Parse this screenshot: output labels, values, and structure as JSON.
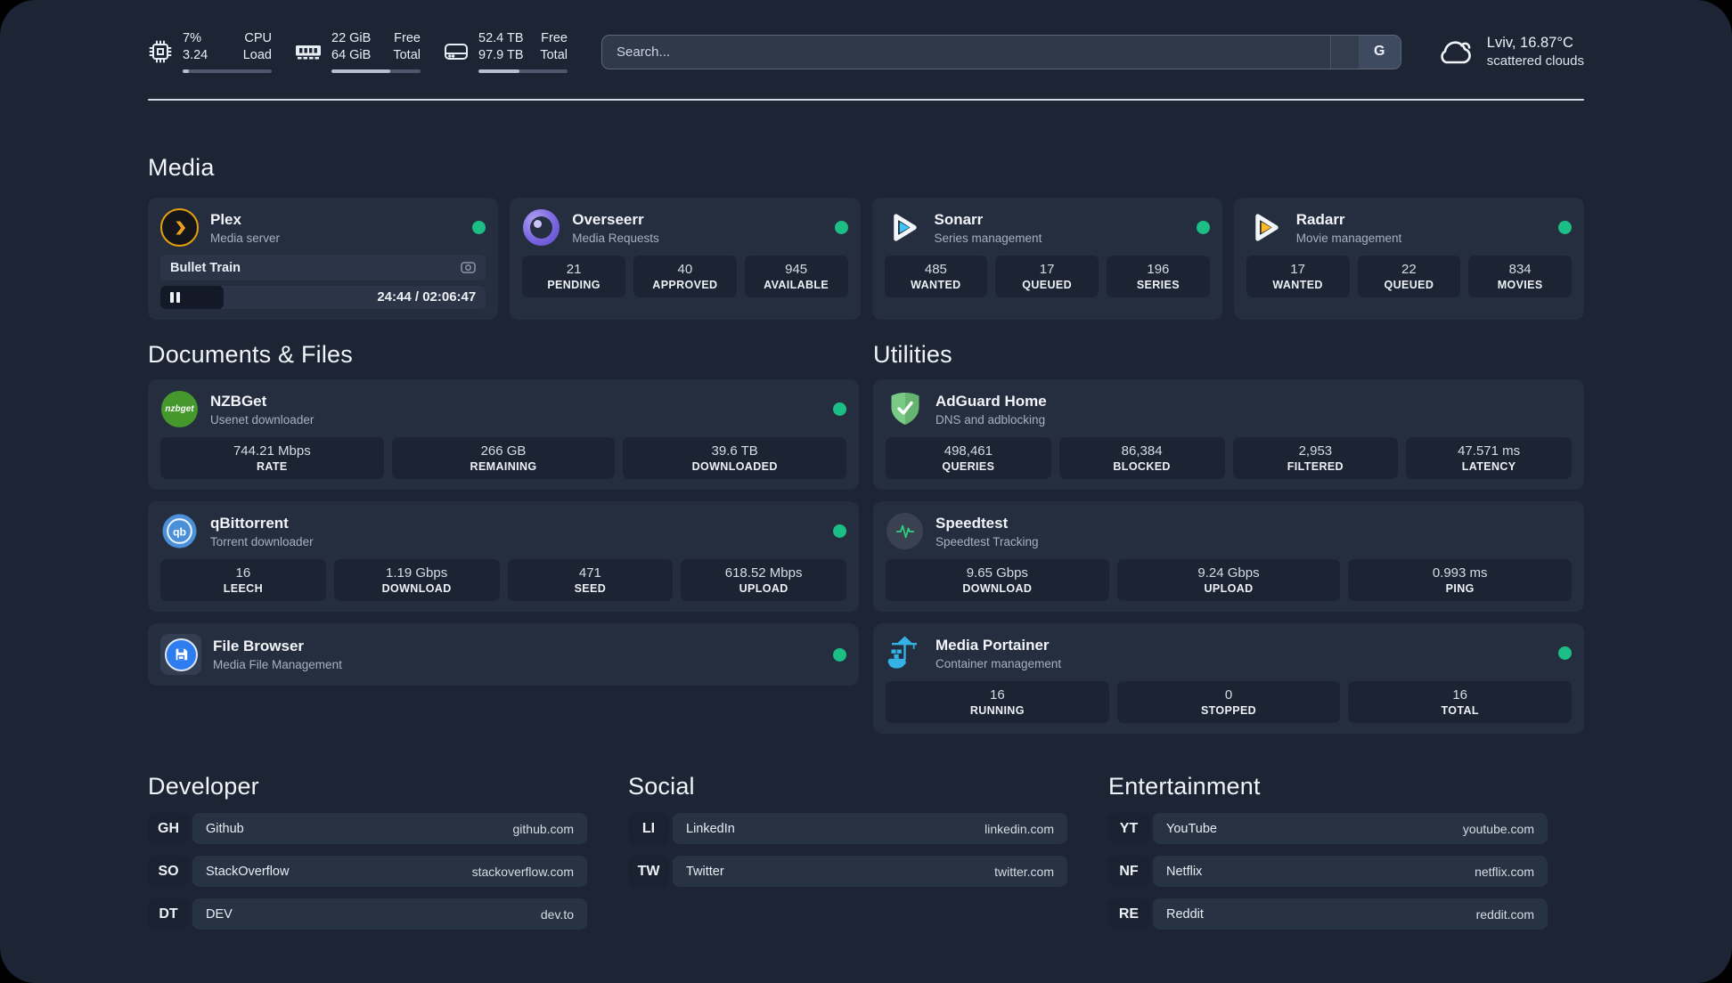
{
  "theme": {
    "status_online": "#1dbd86",
    "background": "#1d2535",
    "card": "#242e3f",
    "accent_amber": "#e5a00d"
  },
  "topbar": {
    "stats": [
      {
        "icon": "cpu-icon",
        "col1_top": "7%",
        "col1_bottom": "3.24",
        "col2_top": "CPU",
        "col2_bottom": "Load",
        "progress_pct": 7
      },
      {
        "icon": "memory-icon",
        "col1_top": "22 GiB",
        "col1_bottom": "64 GiB",
        "col2_top": "Free",
        "col2_bottom": "Total",
        "progress_pct": 66
      },
      {
        "icon": "disk-icon",
        "col1_top": "52.4 TB",
        "col1_bottom": "97.9 TB",
        "col2_top": "Free",
        "col2_bottom": "Total",
        "progress_pct": 46
      }
    ],
    "search": {
      "placeholder": "Search...",
      "button_label": "G"
    },
    "weather": {
      "summary": "Lviv, 16.87°C",
      "condition": "scattered clouds"
    }
  },
  "media": {
    "title": "Media",
    "plex": {
      "name": "Plex",
      "description": "Media server",
      "now_playing": "Bullet Train",
      "time": "24:44 / 02:06:47",
      "progress_pct": 19.5
    },
    "overseerr": {
      "name": "Overseerr",
      "description": "Media Requests",
      "stats": [
        {
          "value": "21",
          "label": "PENDING"
        },
        {
          "value": "40",
          "label": "APPROVED"
        },
        {
          "value": "945",
          "label": "AVAILABLE"
        }
      ]
    },
    "sonarr": {
      "name": "Sonarr",
      "description": "Series management",
      "stats": [
        {
          "value": "485",
          "label": "WANTED"
        },
        {
          "value": "17",
          "label": "QUEUED"
        },
        {
          "value": "196",
          "label": "SERIES"
        }
      ]
    },
    "radarr": {
      "name": "Radarr",
      "description": "Movie management",
      "stats": [
        {
          "value": "17",
          "label": "WANTED"
        },
        {
          "value": "22",
          "label": "QUEUED"
        },
        {
          "value": "834",
          "label": "MOVIES"
        }
      ]
    }
  },
  "documents": {
    "title": "Documents & Files",
    "nzbget": {
      "name": "NZBGet",
      "description": "Usenet downloader",
      "icon_text": "nzbget",
      "stats": [
        {
          "value": "744.21 Mbps",
          "label": "RATE"
        },
        {
          "value": "266 GB",
          "label": "REMAINING"
        },
        {
          "value": "39.6 TB",
          "label": "DOWNLOADED"
        }
      ]
    },
    "qbittorrent": {
      "name": "qBittorrent",
      "description": "Torrent downloader",
      "icon_text": "qb",
      "stats": [
        {
          "value": "16",
          "label": "LEECH"
        },
        {
          "value": "1.19 Gbps",
          "label": "DOWNLOAD"
        },
        {
          "value": "471",
          "label": "SEED"
        },
        {
          "value": "618.52 Mbps",
          "label": "UPLOAD"
        }
      ]
    },
    "filebrowser": {
      "name": "File Browser",
      "description": "Media File Management"
    }
  },
  "utilities": {
    "title": "Utilities",
    "adguard": {
      "name": "AdGuard Home",
      "description": "DNS and adblocking",
      "stats": [
        {
          "value": "498,461",
          "label": "QUERIES"
        },
        {
          "value": "86,384",
          "label": "BLOCKED"
        },
        {
          "value": "2,953",
          "label": "FILTERED"
        },
        {
          "value": "47.571 ms",
          "label": "LATENCY"
        }
      ]
    },
    "speedtest": {
      "name": "Speedtest",
      "description": "Speedtest Tracking",
      "stats": [
        {
          "value": "9.65 Gbps",
          "label": "DOWNLOAD"
        },
        {
          "value": "9.24 Gbps",
          "label": "UPLOAD"
        },
        {
          "value": "0.993 ms",
          "label": "PING"
        }
      ]
    },
    "portainer": {
      "name": "Media Portainer",
      "description": "Container management",
      "stats": [
        {
          "value": "16",
          "label": "RUNNING"
        },
        {
          "value": "0",
          "label": "STOPPED"
        },
        {
          "value": "16",
          "label": "TOTAL"
        }
      ]
    }
  },
  "links": {
    "developer": {
      "title": "Developer",
      "items": [
        {
          "abbr": "GH",
          "name": "Github",
          "url": "github.com"
        },
        {
          "abbr": "SO",
          "name": "StackOverflow",
          "url": "stackoverflow.com"
        },
        {
          "abbr": "DT",
          "name": "DEV",
          "url": "dev.to"
        }
      ]
    },
    "social": {
      "title": "Social",
      "items": [
        {
          "abbr": "LI",
          "name": "LinkedIn",
          "url": "linkedin.com"
        },
        {
          "abbr": "TW",
          "name": "Twitter",
          "url": "twitter.com"
        }
      ]
    },
    "entertainment": {
      "title": "Entertainment",
      "items": [
        {
          "abbr": "YT",
          "name": "YouTube",
          "url": "youtube.com"
        },
        {
          "abbr": "NF",
          "name": "Netflix",
          "url": "netflix.com"
        },
        {
          "abbr": "RE",
          "name": "Reddit",
          "url": "reddit.com"
        }
      ]
    }
  }
}
